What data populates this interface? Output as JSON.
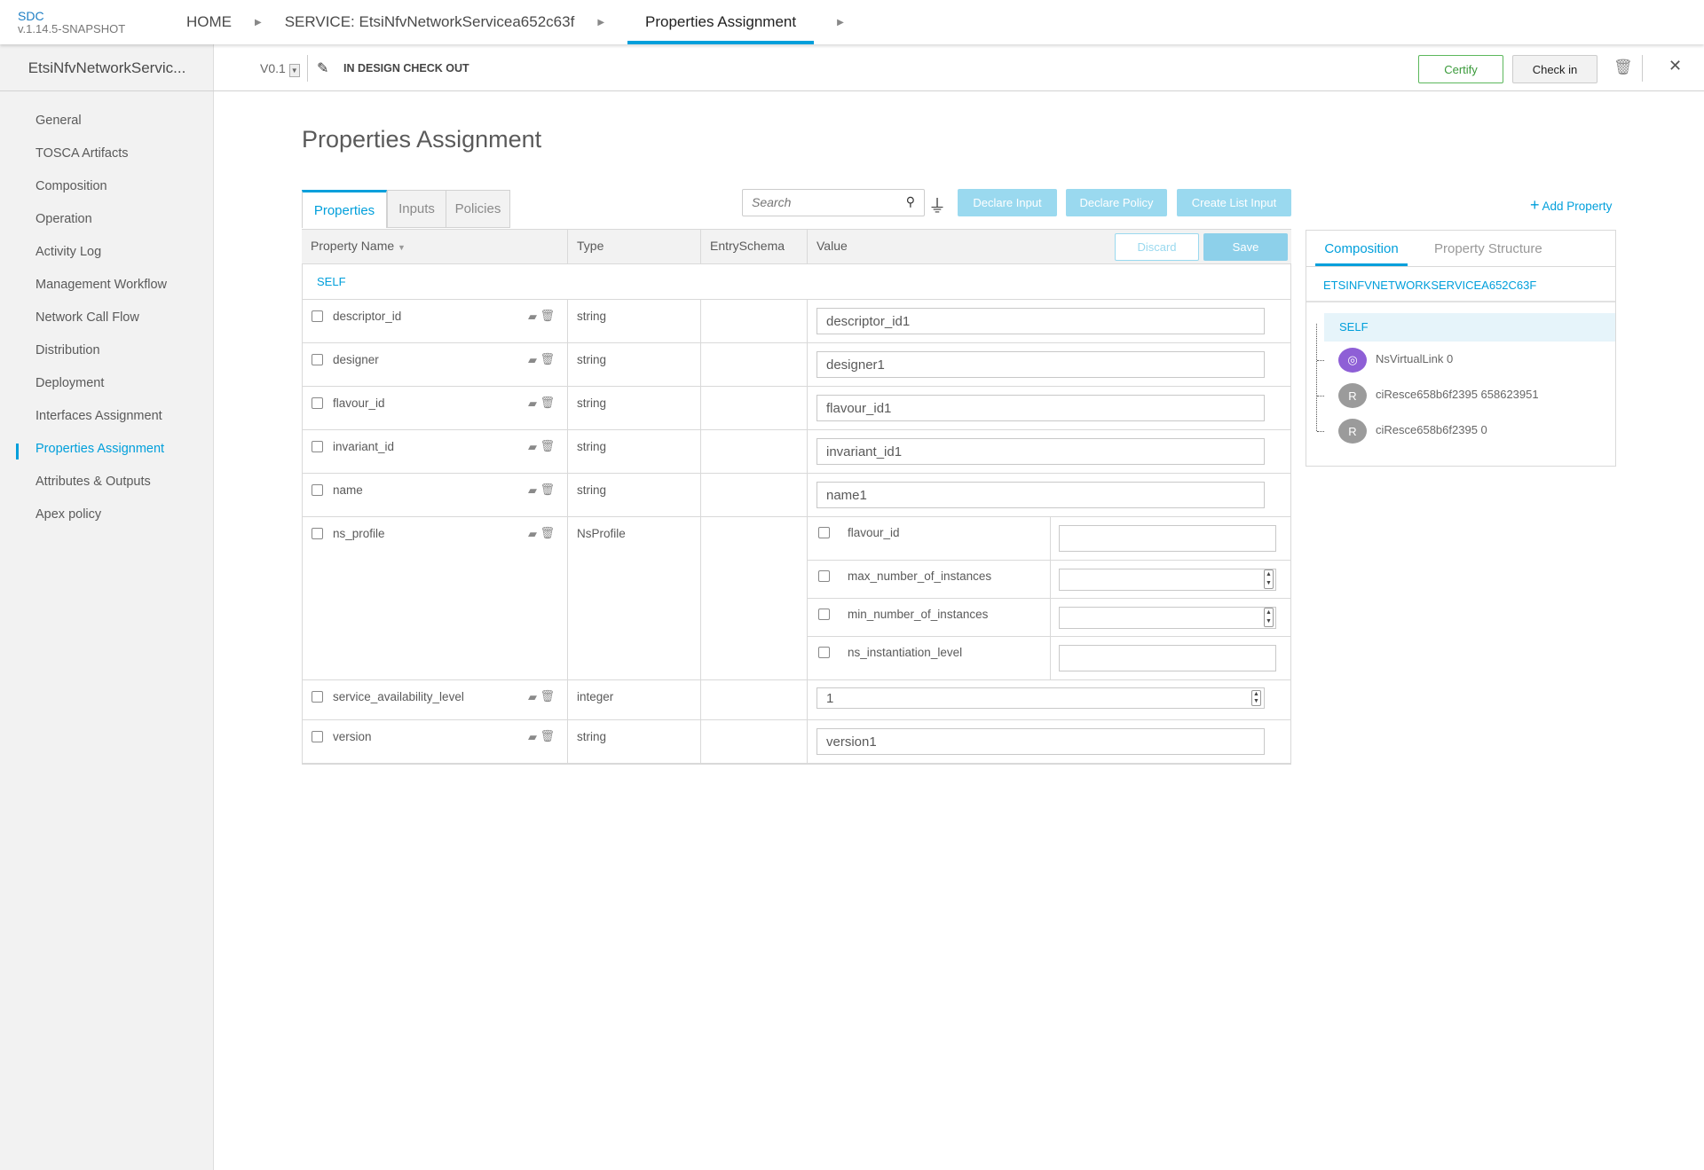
{
  "app": {
    "name": "SDC",
    "version": "v.1.14.5-SNAPSHOT"
  },
  "breadcrumbs": [
    {
      "label": "HOME"
    },
    {
      "label": "SERVICE: EtsiNfvNetworkServicea652c63f"
    },
    {
      "label": "Properties Assignment"
    }
  ],
  "subheader": {
    "service_name": "EtsiNfvNetworkServic...",
    "version": "V0.1",
    "status": "IN DESIGN CHECK OUT",
    "certify": "Certify",
    "check_in": "Check in"
  },
  "sidebar": {
    "items": [
      {
        "label": "General"
      },
      {
        "label": "TOSCA Artifacts"
      },
      {
        "label": "Composition"
      },
      {
        "label": "Operation"
      },
      {
        "label": "Activity Log"
      },
      {
        "label": "Management Workflow"
      },
      {
        "label": "Network Call Flow"
      },
      {
        "label": "Distribution"
      },
      {
        "label": "Deployment"
      },
      {
        "label": "Interfaces Assignment"
      },
      {
        "label": "Properties Assignment",
        "active": true
      },
      {
        "label": "Attributes & Outputs"
      },
      {
        "label": "Apex policy"
      }
    ]
  },
  "page": {
    "title": "Properties Assignment"
  },
  "tabs": [
    {
      "label": "Properties",
      "active": true
    },
    {
      "label": "Inputs"
    },
    {
      "label": "Policies"
    }
  ],
  "toolbar": {
    "search_placeholder": "Search",
    "declare_input": "Declare Input",
    "declare_policy": "Declare Policy",
    "create_list_input": "Create List Input",
    "add_property": "Add Property"
  },
  "table": {
    "headers": {
      "name": "Property Name",
      "type": "Type",
      "entry": "EntrySchema",
      "value": "Value"
    },
    "discard": "Discard",
    "save": "Save",
    "group": "SELF",
    "rows": [
      {
        "name": "descriptor_id",
        "type": "string",
        "value": "descriptor_id1"
      },
      {
        "name": "designer",
        "type": "string",
        "value": "designer1"
      },
      {
        "name": "flavour_id",
        "type": "string",
        "value": "flavour_id1"
      },
      {
        "name": "invariant_id",
        "type": "string",
        "value": "invariant_id1"
      },
      {
        "name": "name",
        "type": "string",
        "value": "name1"
      },
      {
        "name": "ns_profile",
        "type": "NsProfile",
        "sub": [
          {
            "name": "flavour_id",
            "value": ""
          },
          {
            "name": "max_number_of_instances",
            "value": ""
          },
          {
            "name": "min_number_of_instances",
            "value": ""
          },
          {
            "name": "ns_instantiation_level",
            "value": ""
          }
        ]
      },
      {
        "name": "service_availability_level",
        "type": "integer",
        "value": "1"
      },
      {
        "name": "version",
        "type": "string",
        "value": "version1"
      }
    ]
  },
  "right_panel": {
    "tabs": [
      {
        "label": "Composition",
        "active": true
      },
      {
        "label": "Property Structure"
      }
    ],
    "root": "ETSINFVNETWORKSERVICEA652C63F",
    "self": "SELF",
    "nodes": [
      {
        "label": "NsVirtualLink 0",
        "icon": "network-icon",
        "color": "#8e5fd6"
      },
      {
        "label": "ciResce658b6f2395 658623951",
        "icon": "R"
      },
      {
        "label": "ciResce658b6f2395 0",
        "icon": "R"
      }
    ]
  },
  "colors": {
    "accent": "#009fdb",
    "certify": "#5cb85c"
  }
}
